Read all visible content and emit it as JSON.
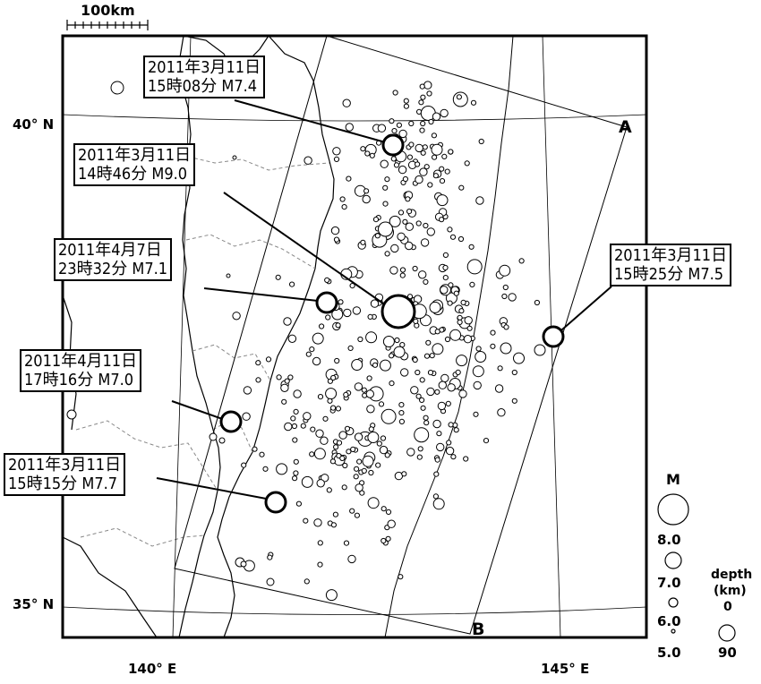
{
  "map": {
    "scale_label": "100km",
    "lat_labels": [
      "40° N",
      "35° N"
    ],
    "lon_labels": [
      "140° E",
      "145° E"
    ],
    "section_points": [
      "A",
      "B"
    ]
  },
  "annotations": [
    {
      "date": "2011年3月11日",
      "time": "15時08分",
      "magnitude": "M7.4"
    },
    {
      "date": "2011年3月11日",
      "time": "14時46分",
      "magnitude": "M9.0"
    },
    {
      "date": "2011年4月7日",
      "time": "23時32分",
      "magnitude": "M7.1"
    },
    {
      "date": "2011年4月11日",
      "time": "17時16分",
      "magnitude": "M7.0"
    },
    {
      "date": "2011年3月11日",
      "time": "15時15分",
      "magnitude": "M7.7"
    },
    {
      "date": "2011年3月11日",
      "time": "15時25分",
      "magnitude": "M7.5"
    }
  ],
  "legend": {
    "magnitude_title": "M",
    "magnitude_values": [
      "8.0",
      "7.0",
      "6.0",
      "5.0"
    ],
    "depth_title": "depth",
    "depth_unit": "(km)",
    "depth_values": [
      "0",
      "90"
    ]
  }
}
